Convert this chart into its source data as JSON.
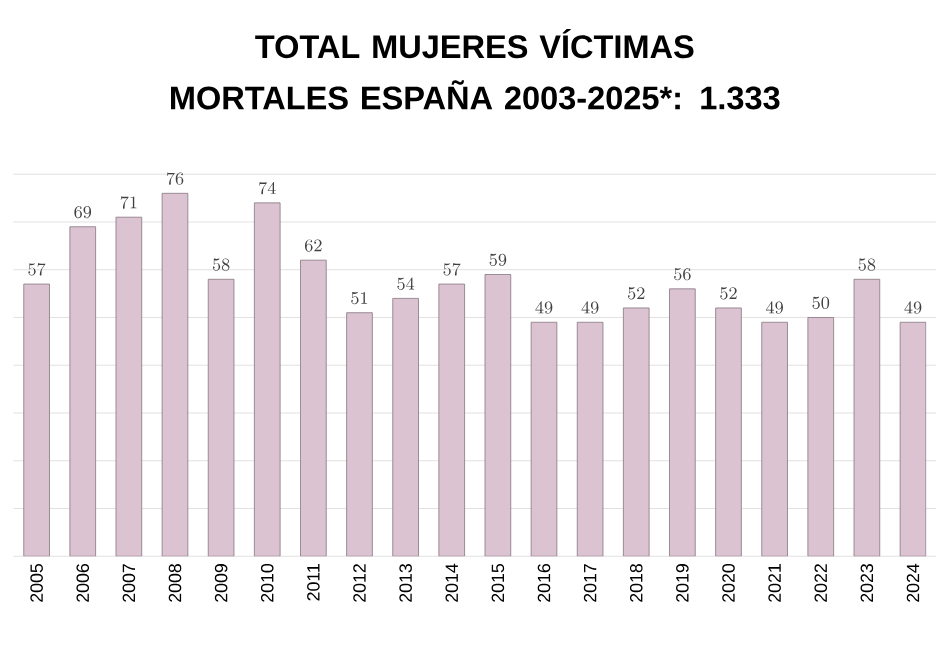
{
  "chart_data": {
    "type": "bar",
    "title": "TOTAL MUJERES VÍCTIMAS MORTALES ESPAÑA 2003-2025*: 1.333",
    "categories": [
      "2005",
      "2006",
      "2007",
      "2008",
      "2009",
      "2010",
      "2011",
      "2012",
      "2013",
      "2014",
      "2015",
      "2016",
      "2017",
      "2018",
      "2019",
      "2020",
      "2021",
      "2022",
      "2023",
      "2024"
    ],
    "values": [
      57,
      69,
      71,
      76,
      58,
      74,
      62,
      51,
      54,
      57,
      59,
      49,
      49,
      52,
      56,
      52,
      49,
      50,
      58,
      49
    ],
    "color": "#dcc3d2",
    "data_labels": true,
    "grid": "y",
    "tick_labels": "x",
    "ylim": [
      0,
      80
    ],
    "yticks": [
      {
        "value": 0,
        "label": null
      },
      {
        "value": 10,
        "label": null
      },
      {
        "value": 20,
        "label": null
      },
      {
        "value": 30,
        "label": null
      },
      {
        "value": 40,
        "label": null
      },
      {
        "value": 50,
        "label": null
      },
      {
        "value": 60,
        "label": null
      },
      {
        "value": 70,
        "label": null
      },
      {
        "value": 80,
        "label": null
      }
    ]
  }
}
